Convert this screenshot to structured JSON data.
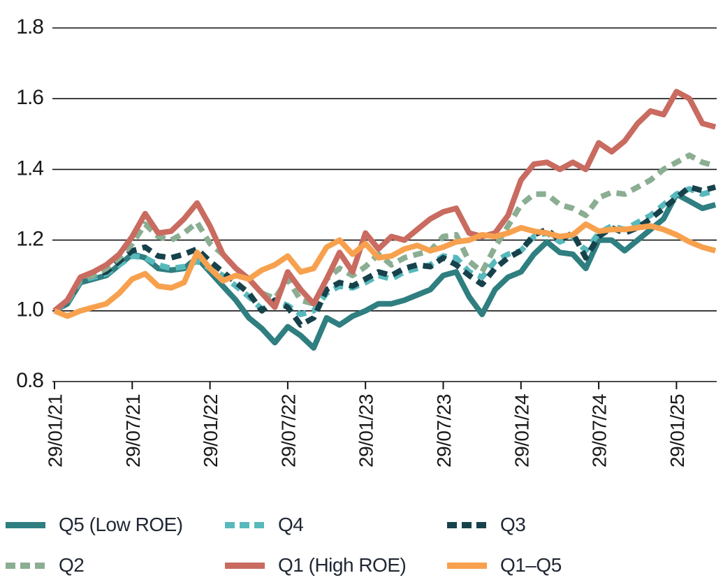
{
  "figure_title": "",
  "chart_data": {
    "type": "line",
    "title": "",
    "xlabel": "",
    "ylabel": "",
    "ylim": [
      0.8,
      1.8
    ],
    "y_ticks": [
      0.8,
      1.0,
      1.2,
      1.4,
      1.6,
      1.8
    ],
    "y_tick_labels": [
      "0.8",
      "1.0",
      "1.2",
      "1.4",
      "1.6",
      "1.8"
    ],
    "x_tick_labels": [
      "29/01/21",
      "29/07/21",
      "29/01/22",
      "29/07/22",
      "29/01/23",
      "29/07/23",
      "29/01/24",
      "29/07/24",
      "29/01/25"
    ],
    "x_tick_positions": [
      0,
      6,
      12,
      18,
      24,
      30,
      36,
      42,
      48
    ],
    "x_frequency": "monthly",
    "x_range_months": 52,
    "grid": "horizontal",
    "legend_position": "bottom",
    "axis_color": "#111111",
    "series": [
      {
        "name": "Q5 (Low ROE)",
        "color": "#2f7e80",
        "dash": "solid",
        "values": [
          1.0,
          1.02,
          1.08,
          1.09,
          1.1,
          1.13,
          1.16,
          1.15,
          1.12,
          1.115,
          1.12,
          1.15,
          1.11,
          1.07,
          1.03,
          0.98,
          0.95,
          0.91,
          0.955,
          0.93,
          0.895,
          0.98,
          0.96,
          0.985,
          1.0,
          1.02,
          1.02,
          1.03,
          1.045,
          1.06,
          1.1,
          1.11,
          1.04,
          0.99,
          1.06,
          1.095,
          1.11,
          1.16,
          1.195,
          1.165,
          1.16,
          1.12,
          1.2,
          1.2,
          1.17,
          1.2,
          1.23,
          1.26,
          1.33,
          1.31,
          1.29,
          1.3
        ]
      },
      {
        "name": "Q4",
        "color": "#58b9bc",
        "dash": "dashed",
        "values": [
          1.0,
          1.025,
          1.085,
          1.095,
          1.105,
          1.13,
          1.155,
          1.15,
          1.13,
          1.12,
          1.125,
          1.14,
          1.12,
          1.1,
          1.07,
          1.04,
          1.005,
          1.03,
          1.015,
          0.99,
          1.0,
          1.05,
          1.07,
          1.065,
          1.08,
          1.1,
          1.09,
          1.11,
          1.12,
          1.13,
          1.155,
          1.15,
          1.11,
          1.095,
          1.14,
          1.16,
          1.17,
          1.21,
          1.22,
          1.195,
          1.21,
          1.17,
          1.22,
          1.24,
          1.23,
          1.25,
          1.27,
          1.3,
          1.33,
          1.345,
          1.33,
          1.34
        ]
      },
      {
        "name": "Q3",
        "color": "#17424b",
        "dash": "dashed",
        "values": [
          1.0,
          1.03,
          1.09,
          1.1,
          1.11,
          1.14,
          1.17,
          1.18,
          1.155,
          1.15,
          1.16,
          1.175,
          1.14,
          1.11,
          1.08,
          1.05,
          1.0,
          1.03,
          1.01,
          0.96,
          0.98,
          1.06,
          1.08,
          1.07,
          1.09,
          1.11,
          1.1,
          1.12,
          1.13,
          1.125,
          1.15,
          1.13,
          1.1,
          1.075,
          1.12,
          1.15,
          1.17,
          1.215,
          1.23,
          1.2,
          1.22,
          1.15,
          1.21,
          1.235,
          1.22,
          1.235,
          1.26,
          1.29,
          1.32,
          1.35,
          1.34,
          1.35
        ]
      },
      {
        "name": "Q2",
        "color": "#8bae92",
        "dash": "dashed",
        "values": [
          1.0,
          1.03,
          1.09,
          1.1,
          1.12,
          1.15,
          1.19,
          1.245,
          1.21,
          1.2,
          1.22,
          1.25,
          1.19,
          1.16,
          1.12,
          1.09,
          1.05,
          1.035,
          1.09,
          1.03,
          1.02,
          1.09,
          1.12,
          1.1,
          1.125,
          1.16,
          1.13,
          1.15,
          1.16,
          1.17,
          1.21,
          1.215,
          1.14,
          1.11,
          1.18,
          1.24,
          1.3,
          1.33,
          1.33,
          1.3,
          1.29,
          1.27,
          1.32,
          1.335,
          1.33,
          1.35,
          1.37,
          1.4,
          1.42,
          1.44,
          1.42,
          1.41
        ]
      },
      {
        "name": "Q1 (High ROE)",
        "color": "#c96b60",
        "dash": "solid",
        "values": [
          1.0,
          1.03,
          1.095,
          1.11,
          1.13,
          1.16,
          1.21,
          1.275,
          1.22,
          1.225,
          1.26,
          1.305,
          1.24,
          1.16,
          1.12,
          1.09,
          1.05,
          1.01,
          1.11,
          1.06,
          1.02,
          1.09,
          1.165,
          1.11,
          1.22,
          1.175,
          1.21,
          1.2,
          1.23,
          1.26,
          1.28,
          1.29,
          1.22,
          1.21,
          1.22,
          1.27,
          1.37,
          1.415,
          1.42,
          1.4,
          1.42,
          1.4,
          1.475,
          1.45,
          1.48,
          1.53,
          1.565,
          1.555,
          1.62,
          1.6,
          1.53,
          1.52
        ]
      },
      {
        "name": "Q1–Q5",
        "color": "#f7a14e",
        "dash": "solid",
        "values": [
          1.0,
          0.985,
          1.0,
          1.01,
          1.02,
          1.05,
          1.09,
          1.105,
          1.07,
          1.065,
          1.08,
          1.165,
          1.12,
          1.085,
          1.1,
          1.09,
          1.115,
          1.13,
          1.155,
          1.11,
          1.12,
          1.18,
          1.2,
          1.16,
          1.19,
          1.15,
          1.155,
          1.175,
          1.185,
          1.17,
          1.18,
          1.195,
          1.2,
          1.215,
          1.21,
          1.22,
          1.235,
          1.225,
          1.22,
          1.21,
          1.215,
          1.245,
          1.225,
          1.23,
          1.23,
          1.235,
          1.24,
          1.23,
          1.215,
          1.195,
          1.18,
          1.17
        ]
      }
    ],
    "legend": {
      "rows": [
        [
          0,
          1,
          2
        ],
        [
          3,
          4,
          5
        ]
      ]
    }
  }
}
